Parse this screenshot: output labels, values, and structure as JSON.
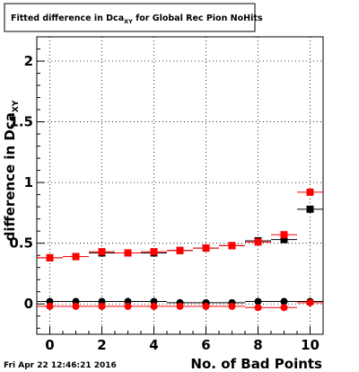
{
  "title": {
    "main": "Fitted difference in Dca",
    "subscript": "XY",
    "suffix": " for Global Rec Pion NoHits"
  },
  "footer_timestamp": "Fri Apr 22 12:46:21 2016",
  "chart_data": {
    "type": "scatter",
    "xlabel": "No. of Bad Points",
    "ylabel_main": "difference in Dca",
    "ylabel_subscript": "XY",
    "xlim": [
      -0.5,
      10.5
    ],
    "ylim": [
      -0.25,
      2.2
    ],
    "x_ticks": [
      0,
      2,
      4,
      6,
      8,
      10
    ],
    "x_tick_labels": [
      "0",
      "2",
      "4",
      "6",
      "8",
      "10"
    ],
    "y_ticks": [
      0,
      0.5,
      1,
      1.5,
      2
    ],
    "y_tick_labels": [
      "0",
      "0.5",
      "1",
      "1.5",
      "2"
    ],
    "grid": true,
    "x": [
      0,
      1,
      2,
      3,
      4,
      5,
      6,
      7,
      8,
      9,
      10
    ],
    "series": [
      {
        "marker": "square",
        "color": "#000000",
        "values": [
          0.38,
          0.39,
          0.42,
          0.42,
          0.42,
          0.44,
          0.46,
          0.48,
          0.52,
          0.53,
          0.78
        ]
      },
      {
        "marker": "square",
        "color": "#ff0000",
        "values": [
          0.38,
          0.39,
          0.43,
          0.42,
          0.43,
          0.44,
          0.46,
          0.48,
          0.51,
          0.57,
          0.92
        ]
      },
      {
        "marker": "circle",
        "color": "#000000",
        "values": [
          0.02,
          0.02,
          0.02,
          0.02,
          0.02,
          0.01,
          0.01,
          0.01,
          0.02,
          0.02,
          0.02
        ]
      },
      {
        "marker": "circle",
        "color": "#ff0000",
        "values": [
          -0.02,
          -0.02,
          -0.02,
          -0.02,
          -0.02,
          -0.02,
          -0.02,
          -0.02,
          -0.03,
          -0.03,
          0.01
        ]
      }
    ]
  }
}
